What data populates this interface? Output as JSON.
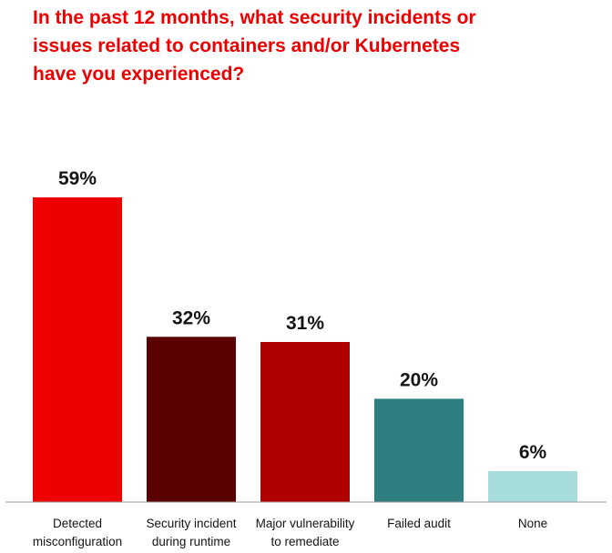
{
  "chart_data": {
    "type": "bar",
    "title_lines": [
      "In the past 12 months, what security incidents or",
      "issues related to containers and/or Kubernetes",
      "have you experienced?"
    ],
    "categories": [
      [
        "Detected",
        "misconfiguration"
      ],
      [
        "Security incident",
        "during runtime"
      ],
      [
        "Major vulnerability",
        "to remediate"
      ],
      [
        "Failed audit"
      ],
      [
        "None"
      ]
    ],
    "values": [
      59,
      32,
      31,
      20,
      6
    ],
    "value_labels": [
      "59%",
      "32%",
      "31%",
      "20%",
      "6%"
    ],
    "colors": [
      "#ee0000",
      "#5a0000",
      "#b10000",
      "#2f7f80",
      "#a6dcdc"
    ],
    "ylim": [
      0,
      59
    ],
    "grid": false,
    "legend": "none"
  }
}
